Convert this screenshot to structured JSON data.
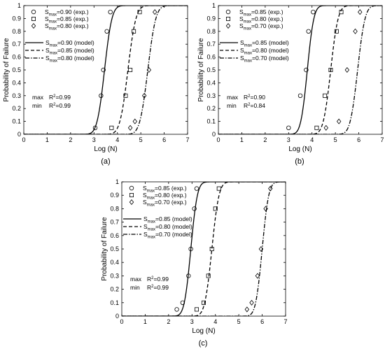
{
  "chart_data": [
    {
      "id": "a",
      "type": "scatter",
      "panel_label": "(a)",
      "xlabel": "Log (N)",
      "ylabel": "Probability of Failure",
      "xlim": [
        0,
        7
      ],
      "ylim": [
        0,
        1
      ],
      "xticks": [
        "0",
        "1",
        "2",
        "3",
        "4",
        "5",
        "6",
        "7"
      ],
      "yticks": [
        "0",
        "0.1",
        "0.2",
        "0.3",
        "0.4",
        "0.5",
        "0.6",
        "0.7",
        "0.8",
        "0.9",
        "1"
      ],
      "grid": false,
      "legend_position": "top-left",
      "series": [
        {
          "name": "S_max=0.90 (exp.)",
          "marker": "circle",
          "x": [
            3.05,
            3.3,
            3.4,
            3.55,
            3.7
          ],
          "y": [
            0.05,
            0.3,
            0.5,
            0.8,
            0.95
          ]
        },
        {
          "name": "S_max=0.85 (exp.)",
          "marker": "square",
          "x": [
            3.75,
            4.35,
            4.55,
            4.7,
            4.95
          ],
          "y": [
            0.05,
            0.3,
            0.5,
            0.8,
            0.95
          ]
        },
        {
          "name": "S_max=0.80 (exp.)",
          "marker": "diamond",
          "x": [
            4.55,
            4.75,
            5.15,
            5.35,
            5.6
          ],
          "y": [
            0.05,
            0.1,
            0.3,
            0.5,
            0.95
          ]
        }
      ],
      "models": [
        {
          "name": "S_max=0.90 (model)",
          "dash": "solid",
          "mu": 3.45,
          "sigma": 0.25
        },
        {
          "name": "S_max=0.85 (model)",
          "dash": "dashed",
          "mu": 4.45,
          "sigma": 0.27
        },
        {
          "name": "S_max=0.80 (model)",
          "dash": "dashdot",
          "mu": 5.3,
          "sigma": 0.27
        }
      ],
      "stats": [
        {
          "label": "max",
          "r2": "=0.99"
        },
        {
          "label": "min",
          "r2": "=0.99"
        }
      ]
    },
    {
      "id": "b",
      "type": "scatter",
      "panel_label": "(b)",
      "xlabel": "Log (N)",
      "ylabel": "Probability of Failure",
      "xlim": [
        0,
        7
      ],
      "ylim": [
        0,
        1
      ],
      "xticks": [
        "0",
        "1",
        "2",
        "3",
        "4",
        "5",
        "6",
        "7"
      ],
      "yticks": [
        "0",
        "0.1",
        "0.2",
        "0.3",
        "0.4",
        "0.5",
        "0.6",
        "0.7",
        "0.8",
        "0.9",
        "1"
      ],
      "grid": false,
      "legend_position": "top-left",
      "series": [
        {
          "name": "S_max=0.85 (exp.)",
          "marker": "circle",
          "x": [
            3.0,
            3.5,
            3.75,
            3.85,
            4.05
          ],
          "y": [
            0.05,
            0.3,
            0.5,
            0.8,
            0.95
          ]
        },
        {
          "name": "S_max=0.80 (exp.)",
          "marker": "square",
          "x": [
            4.2,
            4.55,
            4.8,
            5.05,
            5.25
          ],
          "y": [
            0.05,
            0.3,
            0.5,
            0.8,
            0.95
          ]
        },
        {
          "name": "S_max=0.70 (exp.)",
          "marker": "diamond",
          "x": [
            4.6,
            5.15,
            5.5,
            5.85,
            6.05
          ],
          "y": [
            0.05,
            0.1,
            0.5,
            0.8,
            0.95
          ]
        }
      ],
      "models": [
        {
          "name": "S_max=0.85 (model)",
          "dash": "solid",
          "mu": 3.8,
          "sigma": 0.22
        },
        {
          "name": "S_max=0.80 (model)",
          "dash": "dashed",
          "mu": 4.8,
          "sigma": 0.25
        },
        {
          "name": "S_max=0.70 (model)",
          "dash": "dashdot",
          "mu": 5.95,
          "sigma": 0.25
        }
      ],
      "stats": [
        {
          "label": "max",
          "r2": "=0.90"
        },
        {
          "label": "min",
          "r2": "=0.84"
        }
      ]
    },
    {
      "id": "c",
      "type": "scatter",
      "panel_label": "(c)",
      "xlabel": "Log (N)",
      "ylabel": "Probability of Failure",
      "xlim": [
        0,
        7
      ],
      "ylim": [
        0,
        1
      ],
      "xticks": [
        "0",
        "1",
        "2",
        "3",
        "4",
        "5",
        "6",
        "7"
      ],
      "yticks": [
        "0",
        "0.1",
        "0.2",
        "0.3",
        "0.4",
        "0.5",
        "0.6",
        "0.7",
        "0.8",
        "0.9",
        "1"
      ],
      "grid": false,
      "legend_position": "top-left",
      "series": [
        {
          "name": "S_max=0.85 (exp.)",
          "marker": "circle",
          "x": [
            2.35,
            2.6,
            2.85,
            2.95,
            3.1,
            3.2
          ],
          "y": [
            0.05,
            0.1,
            0.3,
            0.5,
            0.8,
            0.95
          ]
        },
        {
          "name": "S_max=0.80 (exp.)",
          "marker": "square",
          "x": [
            3.2,
            3.5,
            3.7,
            3.85,
            4.0,
            4.15
          ],
          "y": [
            0.05,
            0.1,
            0.3,
            0.5,
            0.8,
            0.95
          ]
        },
        {
          "name": "S_max=0.70 (exp.)",
          "marker": "diamond",
          "x": [
            5.35,
            5.55,
            5.8,
            5.95,
            6.15,
            6.35
          ],
          "y": [
            0.05,
            0.1,
            0.3,
            0.5,
            0.8,
            0.95
          ]
        }
      ],
      "models": [
        {
          "name": "S_max=0.85 (model)",
          "dash": "solid",
          "mu": 2.95,
          "sigma": 0.22
        },
        {
          "name": "S_max=0.80 (model)",
          "dash": "dashed",
          "mu": 3.85,
          "sigma": 0.24
        },
        {
          "name": "S_max=0.70 (model)",
          "dash": "dashdot",
          "mu": 6.0,
          "sigma": 0.22
        }
      ],
      "stats": [
        {
          "label": "max",
          "r2": "=0.99"
        },
        {
          "label": "min",
          "r2": "=0.99"
        }
      ]
    }
  ]
}
